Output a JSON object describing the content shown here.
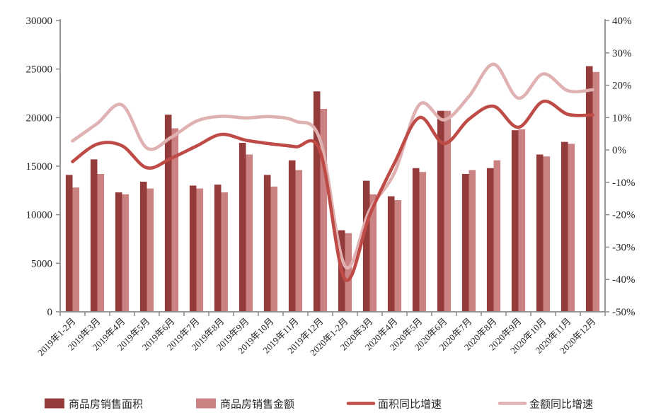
{
  "chart_data": {
    "type": "bar+line combo",
    "title": "",
    "grid": false,
    "legend_position": "bottom",
    "categories": [
      "2019年1-2月",
      "2019年3月",
      "2019年4月",
      "2019年5月",
      "2019年6月",
      "2019年7月",
      "2019年8月",
      "2019年9月",
      "2019年10月",
      "2019年11月",
      "2019年12月",
      "2020年1-2月",
      "2020年3月",
      "2020年4月",
      "2020年5月",
      "2020年6月",
      "2020年7月",
      "2020年8月",
      "2020年9月",
      "2020年10月",
      "2020年11月",
      "2020年12月"
    ],
    "series": [
      {
        "name": "商品房销售面积",
        "type": "bar",
        "axis": "left",
        "color": "#943b3b",
        "values": [
          14100,
          15700,
          12300,
          13400,
          20300,
          13000,
          13100,
          17400,
          14100,
          15600,
          22700,
          8400,
          13500,
          11900,
          14800,
          20700,
          14200,
          14800,
          18700,
          16200,
          17500,
          25300
        ]
      },
      {
        "name": "商品房销售金额",
        "type": "bar",
        "axis": "left",
        "color": "#ca8282",
        "values": [
          12800,
          14200,
          12100,
          12700,
          18900,
          12700,
          12300,
          16200,
          12900,
          14600,
          20900,
          8100,
          12100,
          11500,
          14400,
          20700,
          14600,
          15600,
          18800,
          16000,
          17300,
          24700
        ]
      },
      {
        "name": "面积同比增速",
        "type": "line",
        "axis": "right",
        "color": "#bf4b47",
        "values": [
          -3.6,
          1.8,
          1.3,
          -5.5,
          -2.5,
          1.2,
          4.8,
          3.0,
          1.9,
          1.0,
          -0.5,
          -39.9,
          -20.0,
          -4.0,
          10.0,
          2.0,
          9.5,
          13.5,
          7.0,
          15.0,
          11.0,
          10.8
        ]
      },
      {
        "name": "金额同比增速",
        "type": "line",
        "axis": "right",
        "color": "#e0b1b1",
        "values": [
          2.8,
          8.2,
          13.9,
          0.6,
          4.0,
          8.9,
          10.4,
          9.9,
          10.3,
          8.9,
          3.0,
          -35.9,
          -18.5,
          -7.0,
          14.0,
          9.3,
          16.5,
          26.5,
          16.0,
          23.5,
          18.3,
          18.6
        ]
      }
    ],
    "left_axis": {
      "min": 0,
      "max": 30000,
      "step": 5000,
      "tick_labels": [
        "0",
        "5000",
        "10000",
        "15000",
        "20000",
        "25000",
        "30000"
      ]
    },
    "right_axis": {
      "min": -50,
      "max": 40,
      "step": 10,
      "tick_labels": [
        "-50%",
        "-40%",
        "-30%",
        "-20%",
        "-10%",
        "0%",
        "10%",
        "20%",
        "30%",
        "40%"
      ]
    },
    "axis_color": "#8c8c8c",
    "label_color": "#262626"
  }
}
